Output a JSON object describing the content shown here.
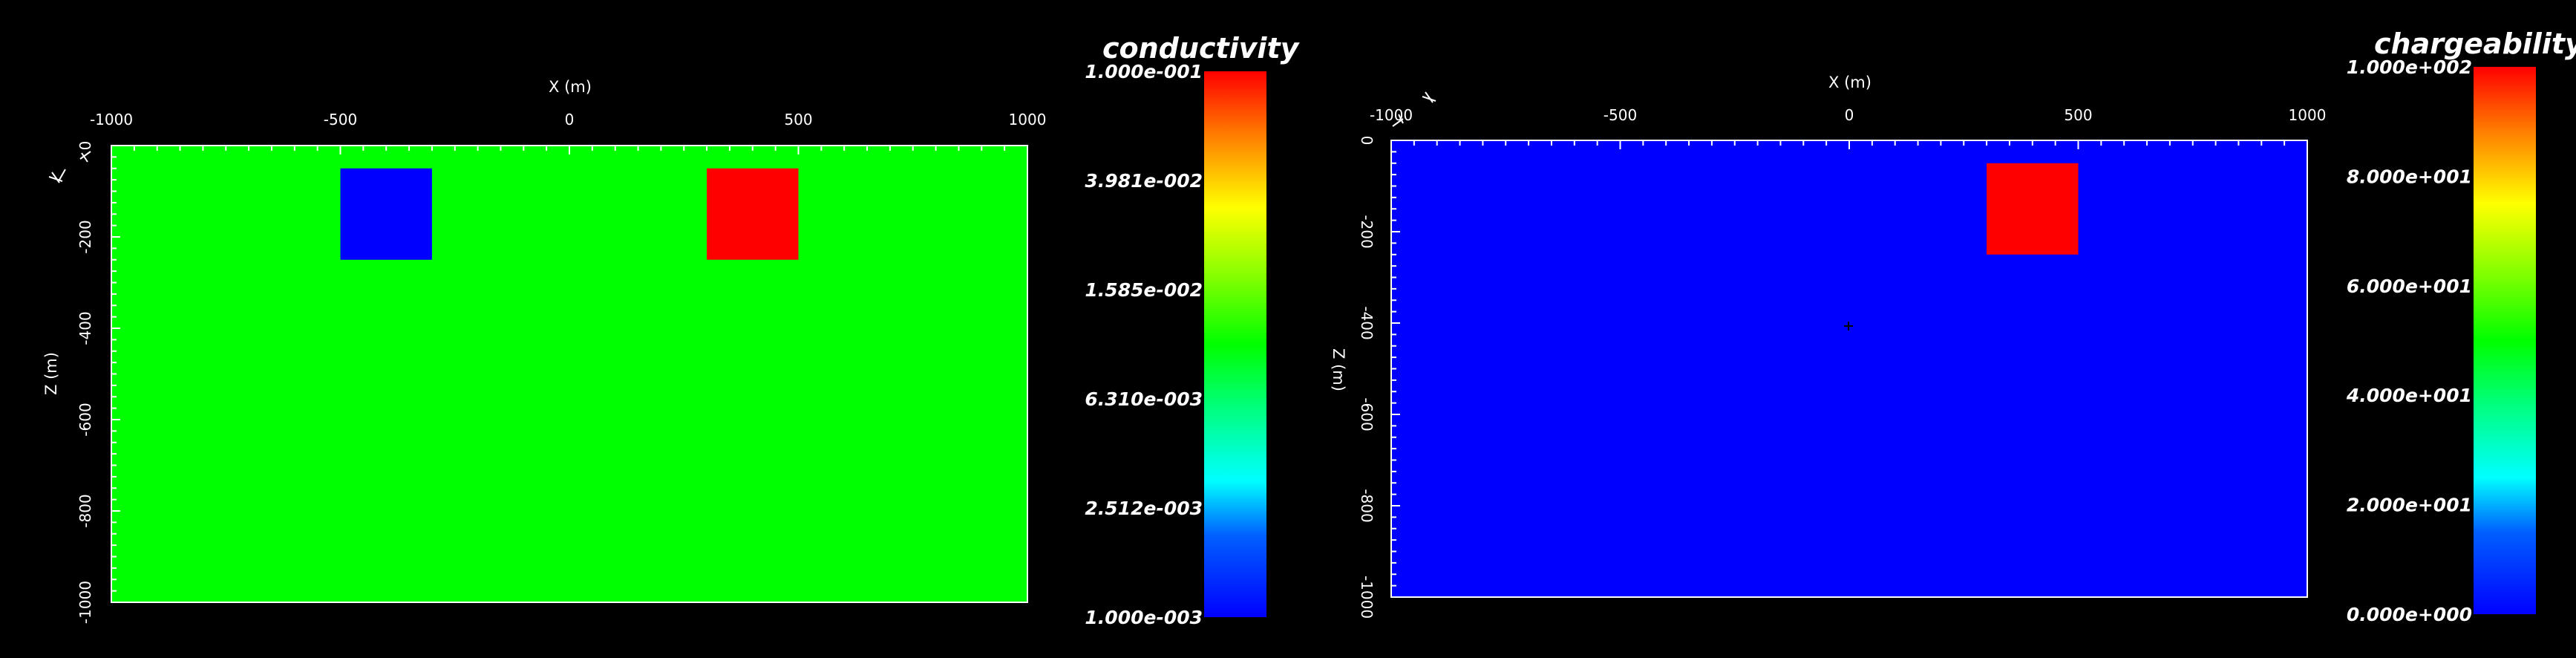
{
  "left_panel": {
    "x_axis_title": "X (m)",
    "z_axis_title": "Z (m)",
    "x_ticks": [
      "-1000",
      "-500",
      "0",
      "500",
      "1000"
    ],
    "z_ticks": [
      "0",
      "-200",
      "-400",
      "-600",
      "-800",
      "-1000"
    ],
    "background_color": "#00ff00",
    "blocks": [
      {
        "name": "conductive-block-blue",
        "color": "#0000ff",
        "x_range": [
          -500,
          -300
        ],
        "z_range": [
          -50,
          -250
        ]
      },
      {
        "name": "conductive-block-red",
        "color": "#ff0000",
        "x_range": [
          300,
          500
        ],
        "z_range": [
          -50,
          -250
        ]
      }
    ],
    "colorbar": {
      "title": "conductivity",
      "labels": [
        "1.000e-001",
        "3.981e-002",
        "1.585e-002",
        "6.310e-003",
        "2.512e-003",
        "1.000e-003"
      ]
    }
  },
  "right_panel": {
    "x_axis_title": "X (m)",
    "z_axis_title": "Z (m)",
    "x_ticks": [
      "-1000",
      "-500",
      "0",
      "500",
      "1000"
    ],
    "z_ticks": [
      "0",
      "-200",
      "-400",
      "-600",
      "-800",
      "-1000"
    ],
    "background_color": "#0000ff",
    "blocks": [
      {
        "name": "chargeable-block-red",
        "color": "#ff0000",
        "x_range": [
          300,
          500
        ],
        "z_range": [
          -50,
          -250
        ]
      }
    ],
    "colorbar": {
      "title": "chargeability",
      "labels": [
        "1.000e+002",
        "8.000e+001",
        "6.000e+001",
        "4.000e+001",
        "2.000e+001",
        "0.000e+000"
      ]
    }
  }
}
